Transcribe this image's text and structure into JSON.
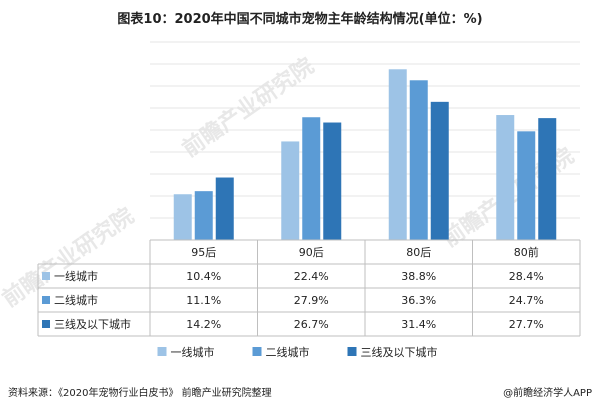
{
  "title": "图表10：2020年中国不同城市宠物主年龄结构情况(单位：%)",
  "watermark": "前瞻产业研究院",
  "source": "资料来源：《2020年宠物行业白皮书》 前瞻产业研究院整理",
  "brand": "@前瞻经济学人APP",
  "colors": {
    "series1": "#9dc3e6",
    "series2": "#5b9bd5",
    "series3": "#2e75b6",
    "grid": "#e4e4e4",
    "table_border": "#bfbfbf"
  },
  "chart_data": {
    "type": "bar",
    "categories": [
      "95后",
      "90后",
      "80后",
      "80前"
    ],
    "series": [
      {
        "name": "一线城市",
        "values": [
          10.4,
          22.4,
          38.8,
          28.4
        ]
      },
      {
        "name": "二线城市",
        "values": [
          11.1,
          27.9,
          36.3,
          24.7
        ]
      },
      {
        "name": "三线及以下城市",
        "values": [
          14.2,
          26.7,
          31.4,
          27.7
        ]
      }
    ],
    "table_labels": [
      [
        "10.4%",
        "22.4%",
        "38.8%",
        "28.4%"
      ],
      [
        "11.1%",
        "27.9%",
        "36.3%",
        "24.7%"
      ],
      [
        "14.2%",
        "26.7%",
        "31.4%",
        "27.7%"
      ]
    ],
    "ylim": [
      0,
      45
    ],
    "grid": true,
    "legend_position": "bottom"
  }
}
